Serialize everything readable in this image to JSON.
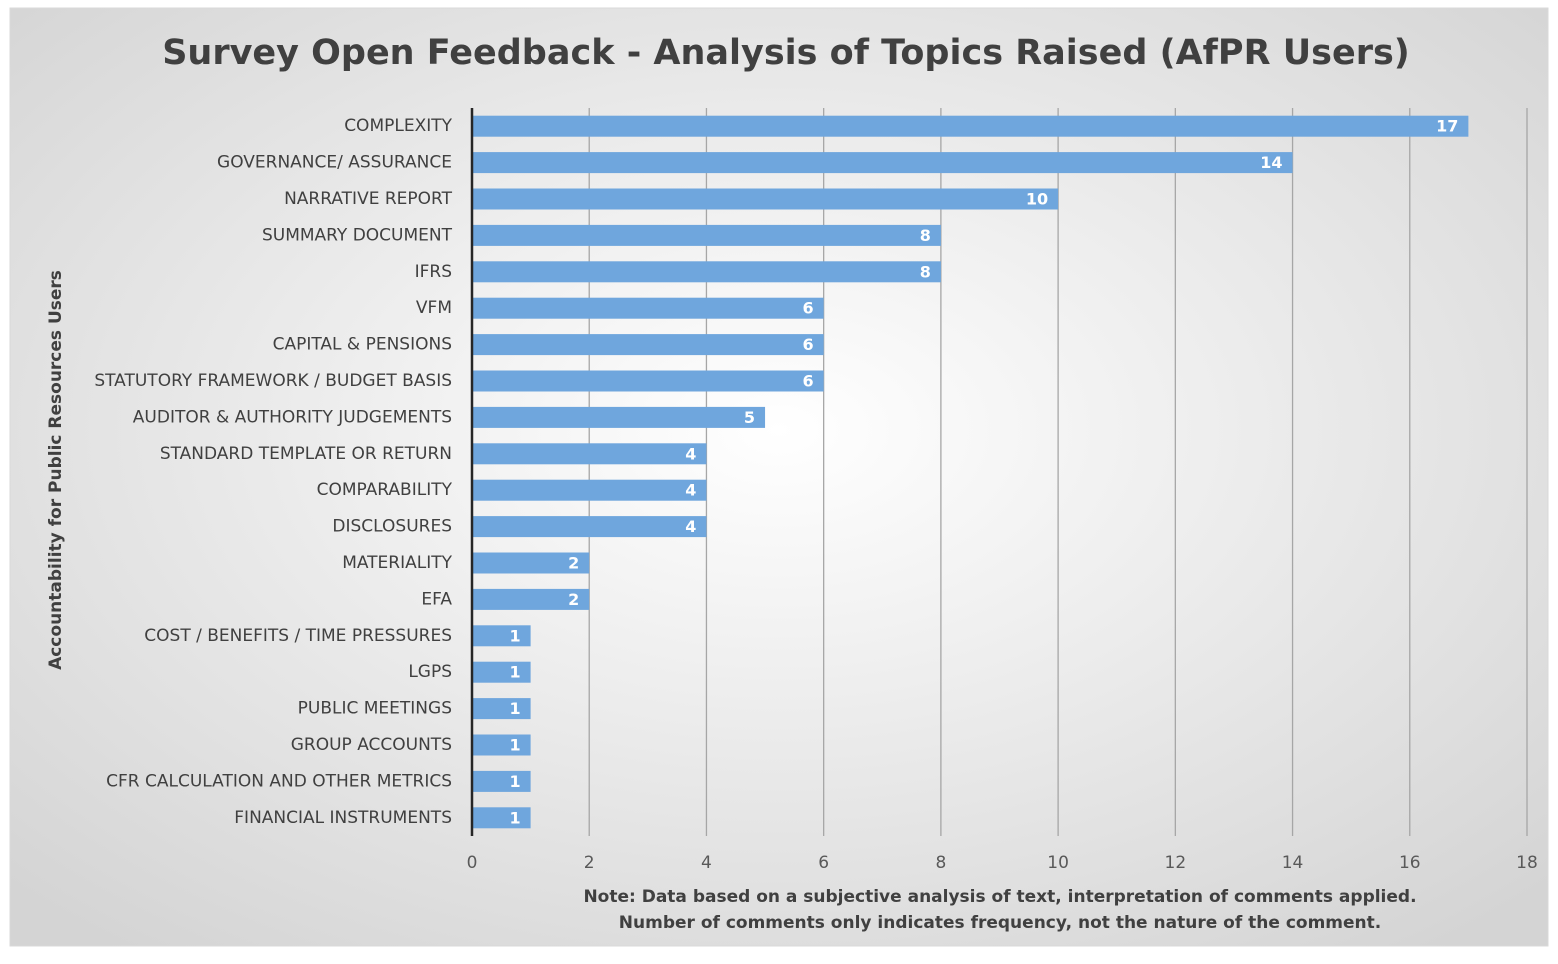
{
  "chart_data": {
    "type": "bar",
    "orientation": "horizontal",
    "title": "Survey Open Feedback - Analysis of Topics Raised (AfPR Users)",
    "y_label": "Accountability for Public Resources Users",
    "note": [
      "Note: Data based on a subjective analysis of text, interpretation of comments applied.",
      "Number of comments only indicates frequency, not the nature of the comment."
    ],
    "categories": [
      "COMPLEXITY",
      "GOVERNANCE/ ASSURANCE",
      "NARRATIVE REPORT",
      "SUMMARY DOCUMENT",
      "IFRS",
      "VFM",
      "CAPITAL & PENSIONS",
      "STATUTORY FRAMEWORK / BUDGET BASIS",
      "AUDITOR & AUTHORITY JUDGEMENTS",
      "STANDARD TEMPLATE OR RETURN",
      "COMPARABILITY",
      "DISCLOSURES",
      "MATERIALITY",
      "EFA",
      "COST / BENEFITS / TIME PRESSURES",
      "LGPS",
      "PUBLIC MEETINGS",
      "GROUP ACCOUNTS",
      "CFR CALCULATION AND OTHER METRICS",
      "FINANCIAL INSTRUMENTS"
    ],
    "values": [
      17,
      14,
      10,
      8,
      8,
      6,
      6,
      6,
      5,
      4,
      4,
      4,
      2,
      2,
      1,
      1,
      1,
      1,
      1,
      1
    ],
    "color": "#6fa6dd",
    "xlim": [
      0,
      18
    ],
    "xticks": [
      0,
      2,
      4,
      6,
      8,
      10,
      12,
      14,
      16,
      18
    ],
    "grid": true
  }
}
